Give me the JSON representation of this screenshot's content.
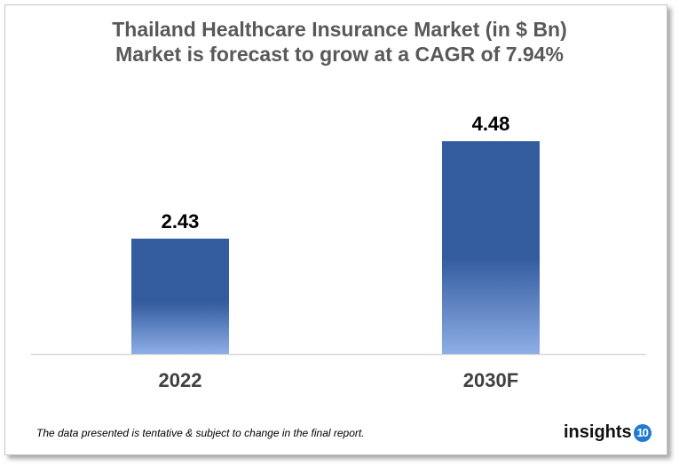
{
  "chart_data": {
    "type": "bar",
    "title": "Thailand Healthcare Insurance Market (in $ Bn)",
    "subtitle": "Market is forecast to grow at a CAGR of 7.94%",
    "categories": [
      "2022",
      "2030F"
    ],
    "values": [
      2.43,
      4.48
    ],
    "data_labels": [
      "2.43",
      "4.48"
    ],
    "ylim": [
      0,
      4.8
    ],
    "grid": false,
    "bar_color_top": "#335c9f",
    "bar_color_bottom": "#8eaee6"
  },
  "footer": {
    "note": "The data presented is tentative & subject to change in the final report.",
    "logo_text": "insights",
    "logo_badge": "10"
  }
}
